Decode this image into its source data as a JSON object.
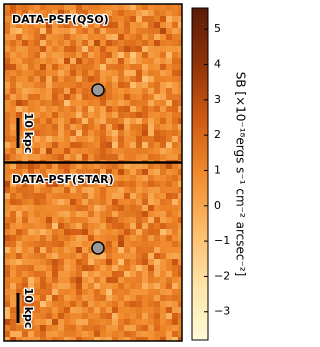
{
  "chart_data": {
    "type": "image",
    "panels": [
      {
        "title": "DATA-PSF(QSO)",
        "scalebar": "10 kpc"
      },
      {
        "title": "DATA-PSF(STAR)",
        "scalebar": "10 kpc"
      }
    ],
    "colorbar_label": "SB [×10⁻¹⁸ergs s⁻¹ cm⁻² arcsec⁻²]",
    "colormap": [
      "#fffbd8",
      "#fee3a6",
      "#fdbb6a",
      "#f08a2c",
      "#cf5a12",
      "#8f3208",
      "#5a1d08"
    ],
    "ylim": [
      -3.8,
      5.6
    ],
    "yticks": [
      5,
      4,
      3,
      2,
      1,
      0,
      {
        "value": -1,
        "label": "−1"
      },
      {
        "value": -2,
        "label": "−2"
      },
      {
        "value": -3,
        "label": "−3"
      }
    ]
  }
}
